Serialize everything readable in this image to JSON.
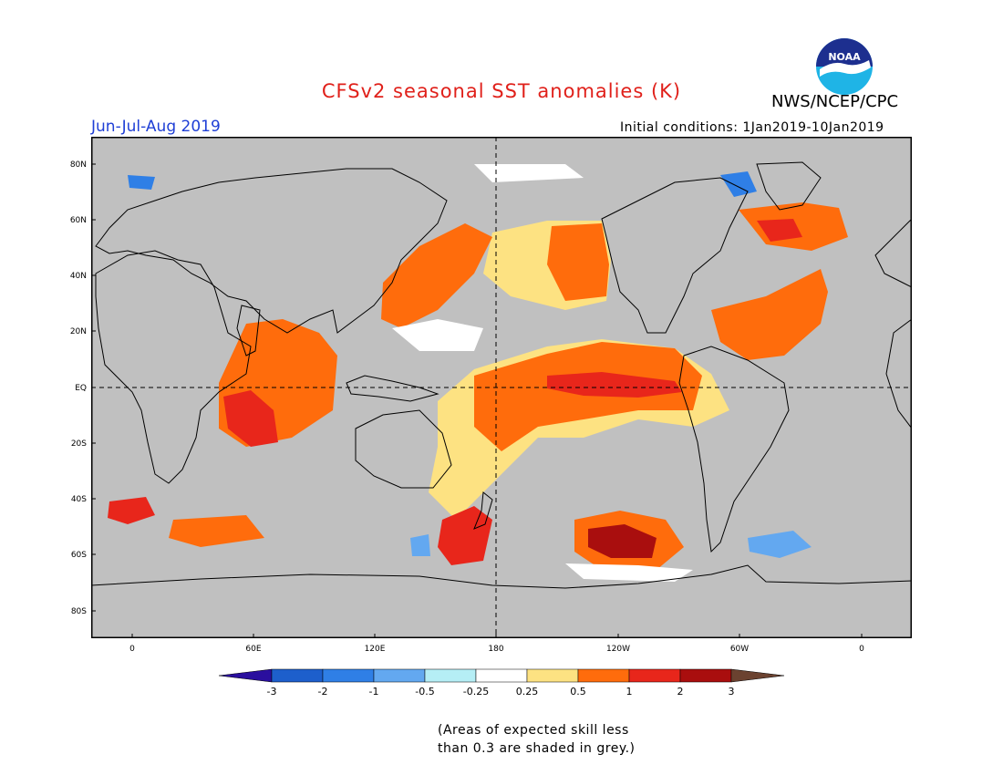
{
  "title": "CFSv2 seasonal SST anomalies (K)",
  "agency": "NWS/NCEP/CPC",
  "logo_text": "NOAA",
  "period": "Jun-Jul-Aug 2019",
  "initial_conditions": "Initial conditions: 1Jan2019-10Jan2019",
  "map": {
    "lat_ticks": [
      "80N",
      "60N",
      "40N",
      "20N",
      "EQ",
      "20S",
      "40S",
      "60S",
      "80S"
    ],
    "lon_ticks": [
      "0",
      "60E",
      "120E",
      "180",
      "120W",
      "60W",
      "0"
    ],
    "background_color": "#c0c0c0",
    "anomaly_regions": [
      {
        "name": "eq-pacific-warm",
        "level": 1
      },
      {
        "name": "eq-pacific-core",
        "level": 2
      },
      {
        "name": "indian-ocean-warm",
        "level": 1
      },
      {
        "name": "sw-indian-ocean",
        "level": 2
      },
      {
        "name": "north-atlantic-warm",
        "level": 1
      },
      {
        "name": "ne-pacific-warm",
        "level": 1
      },
      {
        "name": "south-pacific-warm",
        "level": 2
      },
      {
        "name": "tasman-sea-warm",
        "level": 2
      },
      {
        "name": "labrador-cold",
        "level": -1
      },
      {
        "name": "drake-passage-cold",
        "level": -1
      }
    ]
  },
  "colorbar": {
    "labels": [
      "-3",
      "-2",
      "-1",
      "-0.5",
      "-0.25",
      "0.25",
      "0.5",
      "1",
      "2",
      "3"
    ],
    "colors": [
      "#2a0f9e",
      "#1d5fcc",
      "#2f7fe6",
      "#63a8f0",
      "#b5eef5",
      "#ffffff",
      "#fde282",
      "#ff6c0c",
      "#e8261b",
      "#a90e0e",
      "#6b4230"
    ]
  },
  "footnote": {
    "line1": "(Areas of expected skill less",
    "line2": "than 0.3 are shaded in grey.)"
  }
}
